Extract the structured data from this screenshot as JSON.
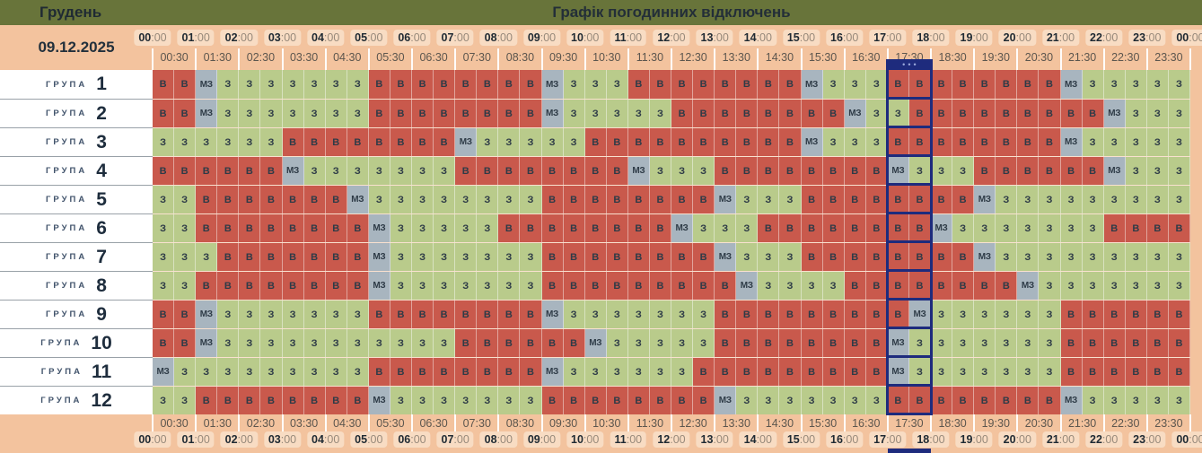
{
  "header": {
    "month": "Грудень",
    "title": "Графік погодинних відключень",
    "date": "09.12.2025"
  },
  "legend": {
    "В": "outage",
    "З": "power-on",
    "МЗ": "possible-outage"
  },
  "colors": {
    "olive": "#68743A",
    "peach": "#F3C39E",
    "chip": "#F8DCC3",
    "red": "#C9594C",
    "green": "#B9CB8B",
    "gray": "#A8B5BF",
    "navy": "#1E2B7D",
    "text": "#2E3B47"
  },
  "timeline": {
    "hours": [
      "00:00",
      "01:00",
      "02:00",
      "03:00",
      "04:00",
      "05:00",
      "06:00",
      "07:00",
      "08:00",
      "09:00",
      "10:00",
      "11:00",
      "12:00",
      "13:00",
      "14:00",
      "15:00",
      "16:00",
      "17:00",
      "18:00",
      "19:00",
      "20:00",
      "21:00",
      "22:00",
      "23:00",
      "00:00"
    ],
    "half_hours": [
      "00:30",
      "01:30",
      "02:30",
      "03:30",
      "04:30",
      "05:30",
      "06:30",
      "07:30",
      "08:30",
      "09:30",
      "10:30",
      "11:30",
      "12:30",
      "13:30",
      "14:30",
      "15:30",
      "16:30",
      "17:30",
      "18:30",
      "19:30",
      "20:30",
      "21:30",
      "22:30",
      "23:30"
    ]
  },
  "current": {
    "range_start": "17:00",
    "range_end": "18:00",
    "columns": [
      35,
      36
    ],
    "dots": "•••"
  },
  "groups": [
    {
      "label": "ГРУПА",
      "number": "1",
      "cells": [
        "В",
        "В",
        "МЗ",
        "З",
        "З",
        "З",
        "З",
        "З",
        "З",
        "З",
        "В",
        "В",
        "В",
        "В",
        "В",
        "В",
        "В",
        "В",
        "МЗ",
        "З",
        "З",
        "З",
        "В",
        "В",
        "В",
        "В",
        "В",
        "В",
        "В",
        "В",
        "МЗ",
        "З",
        "З",
        "З",
        "В",
        "В",
        "В",
        "В",
        "В",
        "В",
        "В",
        "В",
        "МЗ",
        "З",
        "З",
        "З",
        "З",
        "З"
      ]
    },
    {
      "label": "ГРУПА",
      "number": "2",
      "cells": [
        "В",
        "В",
        "МЗ",
        "З",
        "З",
        "З",
        "З",
        "З",
        "З",
        "З",
        "В",
        "В",
        "В",
        "В",
        "В",
        "В",
        "В",
        "В",
        "МЗ",
        "З",
        "З",
        "З",
        "З",
        "З",
        "В",
        "В",
        "В",
        "В",
        "В",
        "В",
        "В",
        "В",
        "МЗ",
        "З",
        "З",
        "В",
        "В",
        "В",
        "В",
        "В",
        "В",
        "В",
        "В",
        "В",
        "МЗ",
        "З",
        "З",
        "З"
      ]
    },
    {
      "label": "ГРУПА",
      "number": "3",
      "cells": [
        "З",
        "З",
        "З",
        "З",
        "З",
        "З",
        "В",
        "В",
        "В",
        "В",
        "В",
        "В",
        "В",
        "В",
        "МЗ",
        "З",
        "З",
        "З",
        "З",
        "З",
        "В",
        "В",
        "В",
        "В",
        "В",
        "В",
        "В",
        "В",
        "В",
        "В",
        "МЗ",
        "З",
        "З",
        "З",
        "В",
        "В",
        "В",
        "В",
        "В",
        "В",
        "В",
        "В",
        "МЗ",
        "З",
        "З",
        "З",
        "З",
        "З"
      ]
    },
    {
      "label": "ГРУПА",
      "number": "4",
      "cells": [
        "В",
        "В",
        "В",
        "В",
        "В",
        "В",
        "МЗ",
        "З",
        "З",
        "З",
        "З",
        "З",
        "З",
        "З",
        "В",
        "В",
        "В",
        "В",
        "В",
        "В",
        "В",
        "В",
        "МЗ",
        "З",
        "З",
        "З",
        "В",
        "В",
        "В",
        "В",
        "В",
        "В",
        "В",
        "В",
        "МЗ",
        "З",
        "З",
        "З",
        "В",
        "В",
        "В",
        "В",
        "В",
        "В",
        "МЗ",
        "З",
        "З",
        "З"
      ]
    },
    {
      "label": "ГРУПА",
      "number": "5",
      "cells": [
        "З",
        "З",
        "В",
        "В",
        "В",
        "В",
        "В",
        "В",
        "В",
        "МЗ",
        "З",
        "З",
        "З",
        "З",
        "З",
        "З",
        "З",
        "З",
        "В",
        "В",
        "В",
        "В",
        "В",
        "В",
        "В",
        "В",
        "МЗ",
        "З",
        "З",
        "З",
        "В",
        "В",
        "В",
        "В",
        "В",
        "В",
        "В",
        "В",
        "МЗ",
        "З",
        "З",
        "З",
        "З",
        "З",
        "З",
        "З",
        "З",
        "З"
      ]
    },
    {
      "label": "ГРУПА",
      "number": "6",
      "cells": [
        "З",
        "З",
        "В",
        "В",
        "В",
        "В",
        "В",
        "В",
        "В",
        "В",
        "МЗ",
        "З",
        "З",
        "З",
        "З",
        "З",
        "В",
        "В",
        "В",
        "В",
        "В",
        "В",
        "В",
        "В",
        "МЗ",
        "З",
        "З",
        "З",
        "В",
        "В",
        "В",
        "В",
        "В",
        "В",
        "В",
        "В",
        "МЗ",
        "З",
        "З",
        "З",
        "З",
        "З",
        "З",
        "З",
        "В",
        "В",
        "В",
        "В"
      ]
    },
    {
      "label": "ГРУПА",
      "number": "7",
      "cells": [
        "З",
        "З",
        "З",
        "В",
        "В",
        "В",
        "В",
        "В",
        "В",
        "В",
        "МЗ",
        "З",
        "З",
        "З",
        "З",
        "З",
        "З",
        "З",
        "В",
        "В",
        "В",
        "В",
        "В",
        "В",
        "В",
        "В",
        "МЗ",
        "З",
        "З",
        "З",
        "В",
        "В",
        "В",
        "В",
        "В",
        "В",
        "В",
        "В",
        "МЗ",
        "З",
        "З",
        "З",
        "З",
        "З",
        "З",
        "З",
        "З",
        "З"
      ]
    },
    {
      "label": "ГРУПА",
      "number": "8",
      "cells": [
        "З",
        "З",
        "В",
        "В",
        "В",
        "В",
        "В",
        "В",
        "В",
        "В",
        "МЗ",
        "З",
        "З",
        "З",
        "З",
        "З",
        "З",
        "З",
        "В",
        "В",
        "В",
        "В",
        "В",
        "В",
        "В",
        "В",
        "В",
        "МЗ",
        "З",
        "З",
        "З",
        "З",
        "В",
        "В",
        "В",
        "В",
        "В",
        "В",
        "В",
        "В",
        "МЗ",
        "З",
        "З",
        "З",
        "З",
        "З",
        "З",
        "З"
      ]
    },
    {
      "label": "ГРУПА",
      "number": "9",
      "cells": [
        "В",
        "В",
        "МЗ",
        "З",
        "З",
        "З",
        "З",
        "З",
        "З",
        "З",
        "В",
        "В",
        "В",
        "В",
        "В",
        "В",
        "В",
        "В",
        "МЗ",
        "З",
        "З",
        "З",
        "З",
        "З",
        "З",
        "З",
        "В",
        "В",
        "В",
        "В",
        "В",
        "В",
        "В",
        "В",
        "В",
        "МЗ",
        "З",
        "З",
        "З",
        "З",
        "З",
        "З",
        "В",
        "В",
        "В",
        "В",
        "В",
        "В"
      ]
    },
    {
      "label": "ГРУПА",
      "number": "10",
      "cells": [
        "В",
        "В",
        "МЗ",
        "З",
        "З",
        "З",
        "З",
        "З",
        "З",
        "З",
        "З",
        "З",
        "З",
        "З",
        "В",
        "В",
        "В",
        "В",
        "В",
        "В",
        "МЗ",
        "З",
        "З",
        "З",
        "З",
        "З",
        "В",
        "В",
        "В",
        "В",
        "В",
        "В",
        "В",
        "В",
        "МЗ",
        "З",
        "З",
        "З",
        "З",
        "З",
        "З",
        "З",
        "В",
        "В",
        "В",
        "В",
        "В",
        "В"
      ]
    },
    {
      "label": "ГРУПА",
      "number": "11",
      "cells": [
        "МЗ",
        "З",
        "З",
        "З",
        "З",
        "З",
        "З",
        "З",
        "З",
        "З",
        "В",
        "В",
        "В",
        "В",
        "В",
        "В",
        "В",
        "В",
        "МЗ",
        "З",
        "З",
        "З",
        "З",
        "З",
        "З",
        "В",
        "В",
        "В",
        "В",
        "В",
        "В",
        "В",
        "В",
        "В",
        "МЗ",
        "З",
        "З",
        "З",
        "З",
        "З",
        "З",
        "З",
        "В",
        "В",
        "В",
        "В",
        "В",
        "В"
      ]
    },
    {
      "label": "ГРУПА",
      "number": "12",
      "cells": [
        "З",
        "З",
        "В",
        "В",
        "В",
        "В",
        "В",
        "В",
        "В",
        "В",
        "МЗ",
        "З",
        "З",
        "З",
        "З",
        "З",
        "З",
        "З",
        "В",
        "В",
        "В",
        "В",
        "В",
        "В",
        "В",
        "В",
        "МЗ",
        "З",
        "З",
        "З",
        "З",
        "З",
        "З",
        "З",
        "В",
        "В",
        "В",
        "В",
        "В",
        "В",
        "В",
        "В",
        "МЗ",
        "З",
        "З",
        "З",
        "З",
        "З"
      ]
    }
  ]
}
